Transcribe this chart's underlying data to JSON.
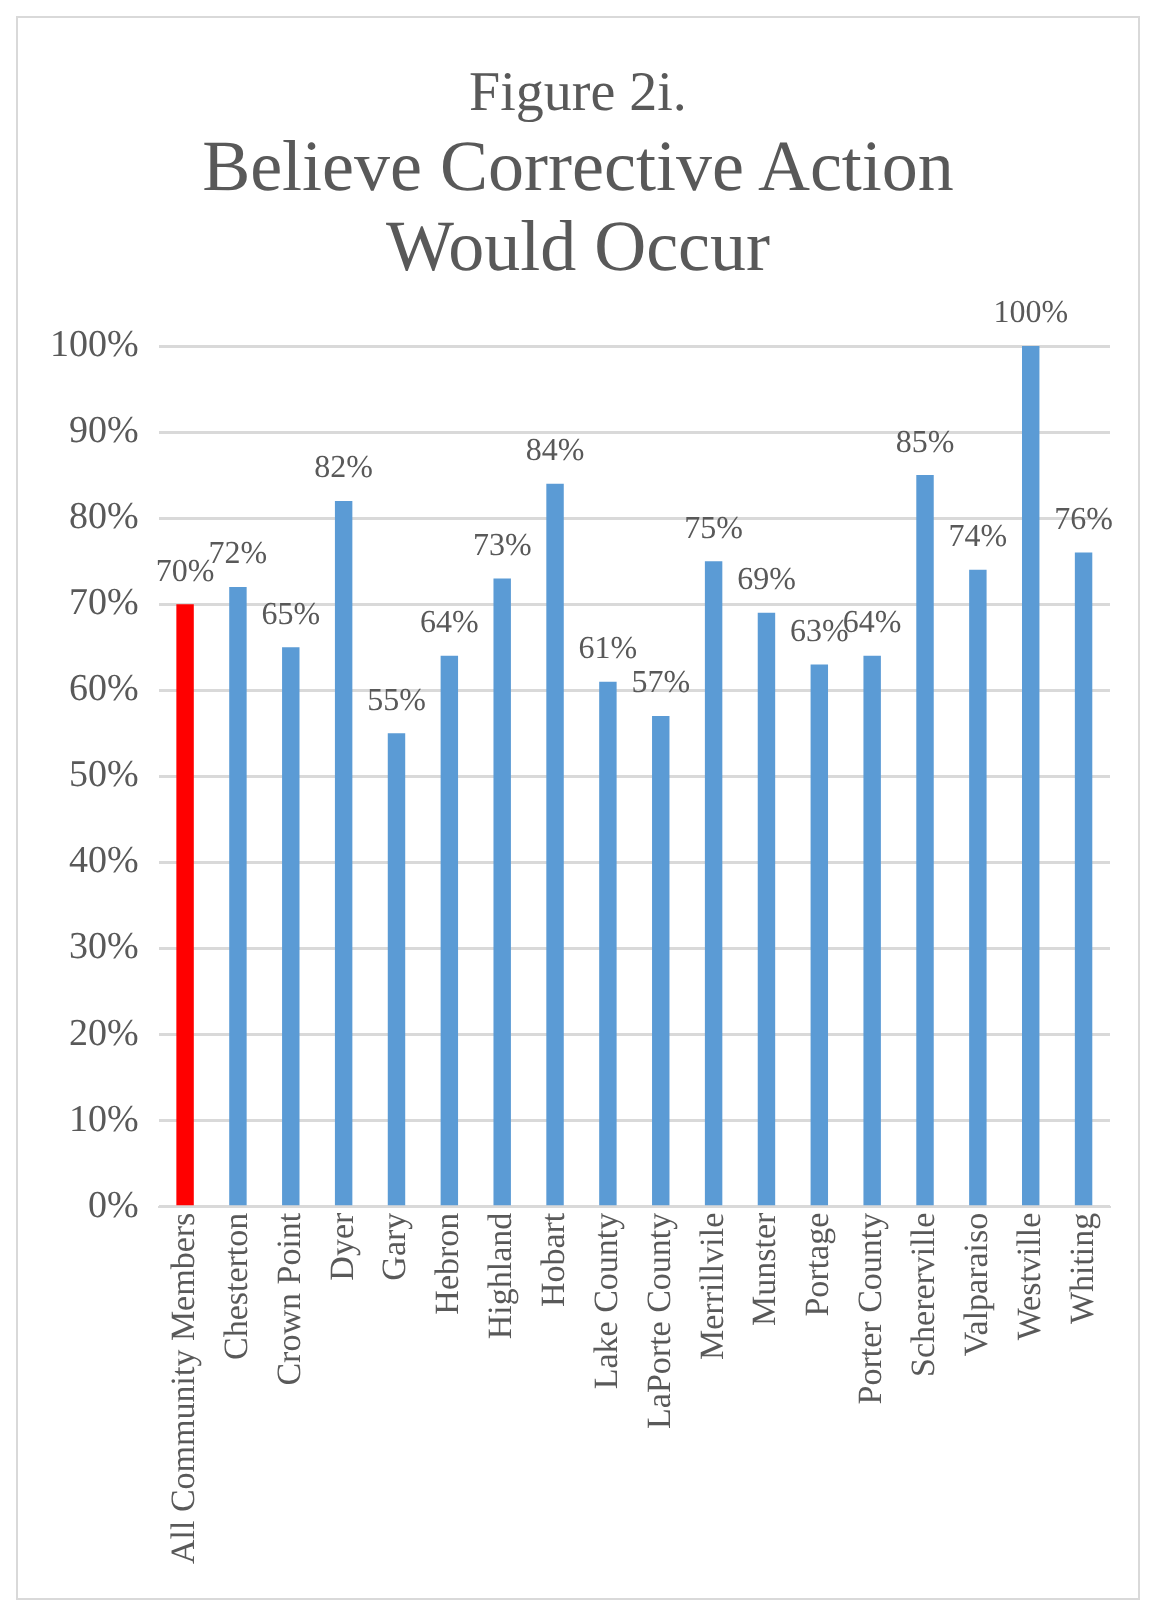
{
  "chart_data": {
    "type": "bar",
    "title": "Figure 2i.",
    "subtitle": "Believe Corrective Action Would Occur",
    "categories": [
      "All Community Members",
      "Chesterton",
      "Crown Point",
      "Dyer",
      "Gary",
      "Hebron",
      "Highland",
      "Hobart",
      "Lake County",
      "LaPorte County",
      "Merrillvile",
      "Munster",
      "Portage",
      "Porter County",
      "Schererville",
      "Valparaiso",
      "Westville",
      "Whiting"
    ],
    "values": [
      70,
      72,
      65,
      82,
      55,
      64,
      73,
      84,
      61,
      57,
      75,
      69,
      63,
      64,
      85,
      74,
      100,
      76
    ],
    "value_labels": [
      "70%",
      "72%",
      "65%",
      "82%",
      "55%",
      "64%",
      "73%",
      "84%",
      "61%",
      "57%",
      "75%",
      "69%",
      "63%",
      "64%",
      "85%",
      "74%",
      "100%",
      "76%"
    ],
    "colors": [
      "#ff0000",
      "#5b9bd5",
      "#5b9bd5",
      "#5b9bd5",
      "#5b9bd5",
      "#5b9bd5",
      "#5b9bd5",
      "#5b9bd5",
      "#5b9bd5",
      "#5b9bd5",
      "#5b9bd5",
      "#5b9bd5",
      "#5b9bd5",
      "#5b9bd5",
      "#5b9bd5",
      "#5b9bd5",
      "#5b9bd5",
      "#5b9bd5"
    ],
    "ylim": [
      0,
      100
    ],
    "yticks": [
      {
        "value": 0,
        "label": "0%"
      },
      {
        "value": 10,
        "label": "10%"
      },
      {
        "value": 20,
        "label": "20%"
      },
      {
        "value": 30,
        "label": "30%"
      },
      {
        "value": 40,
        "label": "40%"
      },
      {
        "value": 50,
        "label": "50%"
      },
      {
        "value": 60,
        "label": "60%"
      },
      {
        "value": 70,
        "label": "70%"
      },
      {
        "value": 80,
        "label": "80%"
      },
      {
        "value": 90,
        "label": "90%"
      },
      {
        "value": 100,
        "label": "100%"
      }
    ],
    "grid": "y",
    "legend": false
  }
}
